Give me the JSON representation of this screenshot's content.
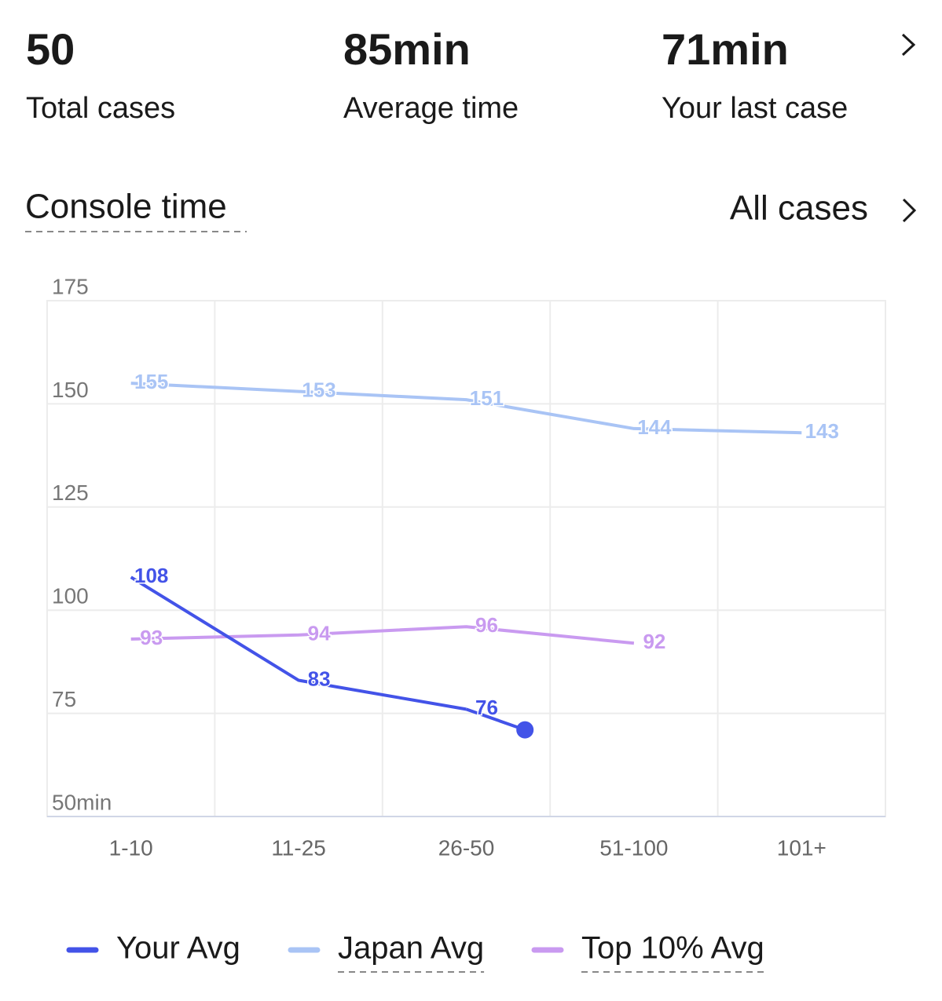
{
  "stats": [
    {
      "value": "50",
      "label": "Total cases"
    },
    {
      "value": "85min",
      "label": "Average time"
    },
    {
      "value": "71min",
      "label": "Your last case"
    }
  ],
  "section": {
    "title": "Console time",
    "filter": "All cases"
  },
  "chart_data": {
    "type": "line",
    "categories": [
      "1-10",
      "11-25",
      "26-50",
      "51-100",
      "101+"
    ],
    "series": [
      {
        "name": "Your Avg",
        "color": "#4353e8",
        "values": [
          108,
          83,
          76,
          null,
          null
        ]
      },
      {
        "name": "Japan Avg",
        "color": "#a9c4f5",
        "values": [
          155,
          153,
          151,
          144,
          143
        ]
      },
      {
        "name": "Top 10% Avg",
        "color": "#c99af0",
        "values": [
          93,
          94,
          96,
          92,
          null
        ]
      }
    ],
    "last_case_value": 71,
    "ylim": [
      50,
      175
    ],
    "yticks": [
      {
        "value": 50,
        "label": "50min"
      },
      75,
      100,
      125,
      150,
      175
    ],
    "grid": true,
    "legend": "bottom"
  }
}
